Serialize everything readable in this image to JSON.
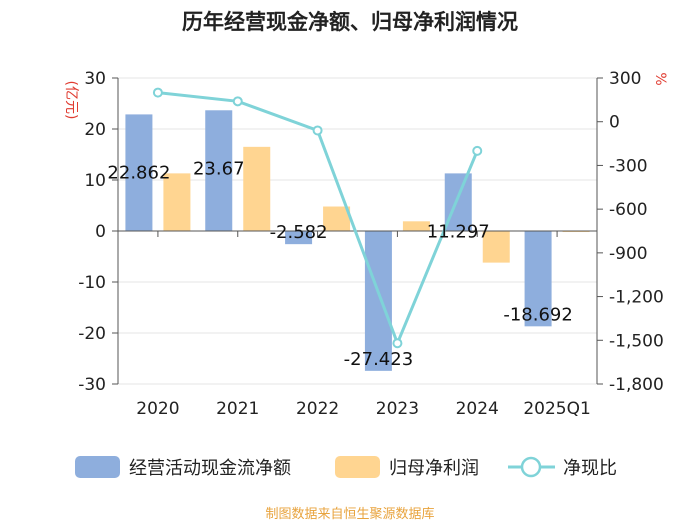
{
  "chart_data": {
    "type": "bar",
    "title": "历年经营现金净额、归母净利润情况",
    "categories": [
      "2020",
      "2021",
      "2022",
      "2023",
      "2024",
      "2025Q1"
    ],
    "ylabel_left": "(亿元)",
    "ylabel_right": "%",
    "ylim_left": [
      -30,
      30
    ],
    "ylim_right": [
      -1800,
      300
    ],
    "yticks_left": [
      30,
      20,
      10,
      0,
      -10,
      -20,
      -30
    ],
    "yticks_right": [
      300,
      0,
      -300,
      -600,
      -900,
      -1200,
      -1500,
      -1800
    ],
    "ytick_labels_left": [
      "30",
      "20",
      "10",
      "0",
      "-10",
      "-20",
      "-30"
    ],
    "ytick_labels_right": [
      "300",
      "0",
      "-300",
      "-600",
      "-900",
      "-1,200",
      "-1,500",
      "-1,800"
    ],
    "series": [
      {
        "name": "经营活动现金流净额",
        "type": "bar",
        "axis": "left",
        "color": "#8eaedd",
        "values": [
          22.862,
          23.67,
          -2.582,
          -27.423,
          11.297,
          -18.692
        ],
        "labels": [
          "22.862",
          "23.67",
          "-2.582",
          "-27.423",
          "11.297",
          "-18.692"
        ]
      },
      {
        "name": "归母净利润",
        "type": "bar",
        "axis": "left",
        "color": "#ffd591",
        "values": [
          11.3,
          16.5,
          4.8,
          1.9,
          -6.2,
          -0.2
        ]
      },
      {
        "name": "净现比",
        "type": "line",
        "axis": "right",
        "color": "#7fd3d8",
        "values": [
          200,
          140,
          -60,
          -1520,
          -200,
          null
        ]
      }
    ],
    "legend_position": "bottom"
  },
  "source_text": "制图数据来自恒生聚源数据库",
  "colors": {
    "unit_label": "#e03c31",
    "source_text": "#e8a33d",
    "axis": "#555555",
    "grid": "#e6e6e6"
  }
}
